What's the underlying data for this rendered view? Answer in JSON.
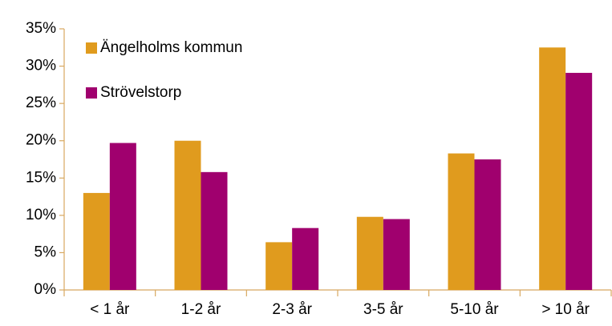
{
  "chart_data": {
    "type": "bar",
    "categories": [
      "< 1 år",
      "1-2 år",
      "2-3 år",
      "3-5 år",
      "5-10 år",
      "> 10 år"
    ],
    "series": [
      {
        "name": "Ängelholms kommun",
        "color": "#e09b1e",
        "values": [
          13,
          20,
          6.4,
          9.8,
          18.3,
          32.5
        ]
      },
      {
        "name": "Strövelstorp",
        "color": "#a0006e",
        "values": [
          19.7,
          15.8,
          8.3,
          9.5,
          17.5,
          29.1
        ]
      }
    ],
    "ylim": [
      0,
      35
    ],
    "yticks": [
      {
        "value": 0,
        "label": "0%"
      },
      {
        "value": 5,
        "label": "5%"
      },
      {
        "value": 10,
        "label": "10%"
      },
      {
        "value": 15,
        "label": "15%"
      },
      {
        "value": 20,
        "label": "20%"
      },
      {
        "value": 25,
        "label": "25%"
      },
      {
        "value": 30,
        "label": "30%"
      },
      {
        "value": 35,
        "label": "35%"
      }
    ],
    "grid": false
  }
}
